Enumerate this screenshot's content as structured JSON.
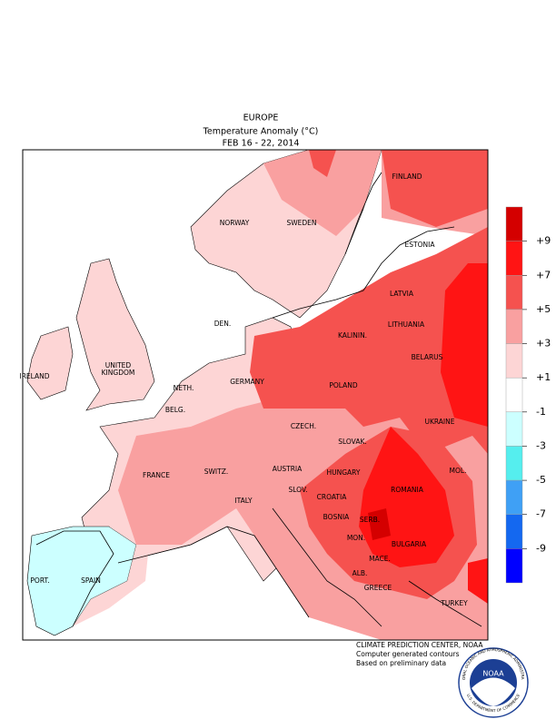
{
  "header": {
    "lines": [
      "EUROPE",
      "Temperature Anomaly (°C)",
      "FEB 16 - 22, 2014"
    ]
  },
  "map": {
    "labels": [
      "FINLAND",
      "NORWAY",
      "SWEDEN",
      "ESTONIA",
      "LATVIA",
      "DEN.",
      "LITHUANIA",
      "KALININ.",
      "IRELAND",
      "UNITED",
      "KINGDOM",
      "BELARUS",
      "NETH.",
      "GERMANY",
      "POLAND",
      "BELG.",
      "UKRAINE",
      "CZECH.",
      "SLOVAK.",
      "FRANCE",
      "SWITZ.",
      "AUSTRIA",
      "HUNGARY",
      "MOL.",
      "SLOV.",
      "ROMANIA",
      "CROATIA",
      "ITALY",
      "BOSNIA",
      "SERB.",
      "MON.",
      "BULGARIA",
      "MACE.",
      "PORT.",
      "SPAIN",
      "ALB.",
      "GREECE",
      "TURKEY"
    ]
  },
  "legend": {
    "colors": [
      "#d40000",
      "#ff1414",
      "#f5524f",
      "#f9a0a0",
      "#fdd5d5",
      "#ffffff",
      "#ccffff",
      "#55eeee",
      "#3fa0f5",
      "#1468f0",
      "#0000ff"
    ],
    "labels": [
      "+9",
      "+7",
      "+5",
      "+3",
      "+1",
      "-1",
      "-3",
      "-5",
      "-7",
      "-9"
    ]
  },
  "credits": [
    "CLIMATE PREDICTION CENTER, NOAA",
    "Computer generated contours",
    "Based on preliminary data"
  ],
  "logo": {
    "text": "NOAA",
    "ring_top": "NATIONAL OCEANIC AND ATMOSPHERIC ADMINISTRATION",
    "ring_bottom": "U.S. DEPARTMENT OF COMMERCE"
  }
}
